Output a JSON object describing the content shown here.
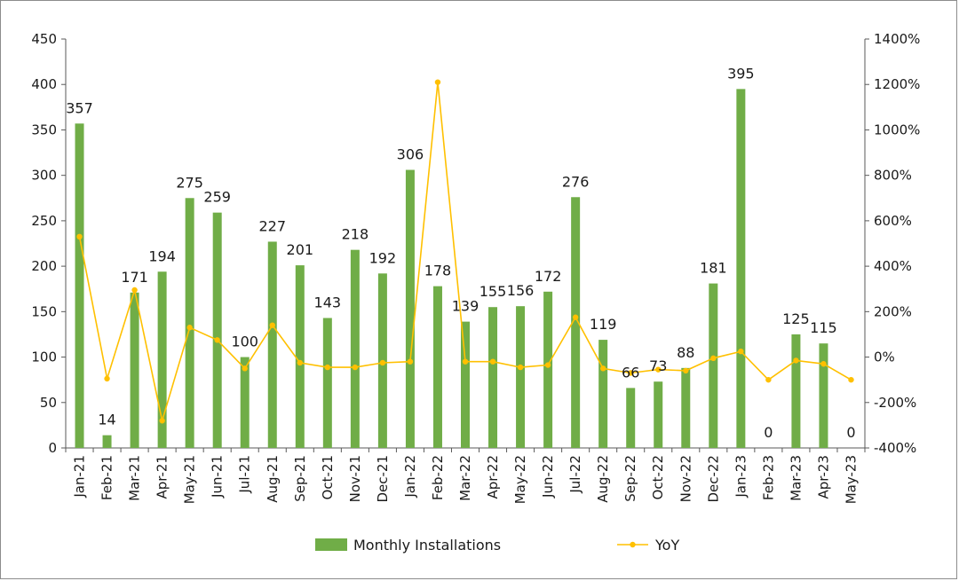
{
  "chart_data": {
    "type": "bar",
    "categories": [
      "Jan-21",
      "Feb-21",
      "Mar-21",
      "Apr-21",
      "May-21",
      "Jun-21",
      "Jul-21",
      "Aug-21",
      "Sep-21",
      "Oct-21",
      "Nov-21",
      "Dec-21",
      "Jan-22",
      "Feb-22",
      "Mar-22",
      "Apr-22",
      "May-22",
      "Jun-22",
      "Jul-22",
      "Aug-22",
      "Sep-22",
      "Oct-22",
      "Nov-22",
      "Dec-22",
      "Jan-23",
      "Feb-23",
      "Mar-23",
      "Apr-23",
      "May-23"
    ],
    "series": [
      {
        "name": "Monthly Installations",
        "type": "bar",
        "axis": "left",
        "color": "#70ad47",
        "values": [
          357,
          14,
          171,
          194,
          275,
          259,
          100,
          227,
          201,
          143,
          218,
          192,
          306,
          178,
          139,
          155,
          156,
          172,
          276,
          119,
          66,
          73,
          88,
          181,
          395,
          0,
          125,
          115,
          0
        ],
        "labels": [
          "357",
          "14",
          "171",
          "194",
          "275",
          "259",
          "100",
          "227",
          "201",
          "143",
          "218",
          "192",
          "306",
          "178",
          "139",
          "155",
          "156",
          "172",
          "276",
          "119",
          "66",
          "73",
          "88",
          "181",
          "395",
          "0",
          "125",
          "115",
          "0"
        ]
      },
      {
        "name": "YoY",
        "type": "line",
        "axis": "right",
        "color": "#ffc000",
        "values": [
          530,
          -95,
          295,
          -280,
          130,
          75,
          -50,
          140,
          -25,
          -45,
          -45,
          -25,
          -20,
          1210,
          -20,
          -20,
          -45,
          -35,
          175,
          -50,
          -70,
          -55,
          -60,
          -5,
          25,
          -100,
          -15,
          -30,
          -100
        ]
      }
    ],
    "ylim_left": [
      0,
      450
    ],
    "yticks_left": [
      0,
      50,
      100,
      150,
      200,
      250,
      300,
      350,
      400,
      450
    ],
    "ylim_right": [
      -400,
      1400
    ],
    "yticks_right": [
      "-400%",
      "-200%",
      "0%",
      "200%",
      "400%",
      "600%",
      "800%",
      "1000%",
      "1200%",
      "1400%"
    ],
    "legend": "bottom"
  }
}
